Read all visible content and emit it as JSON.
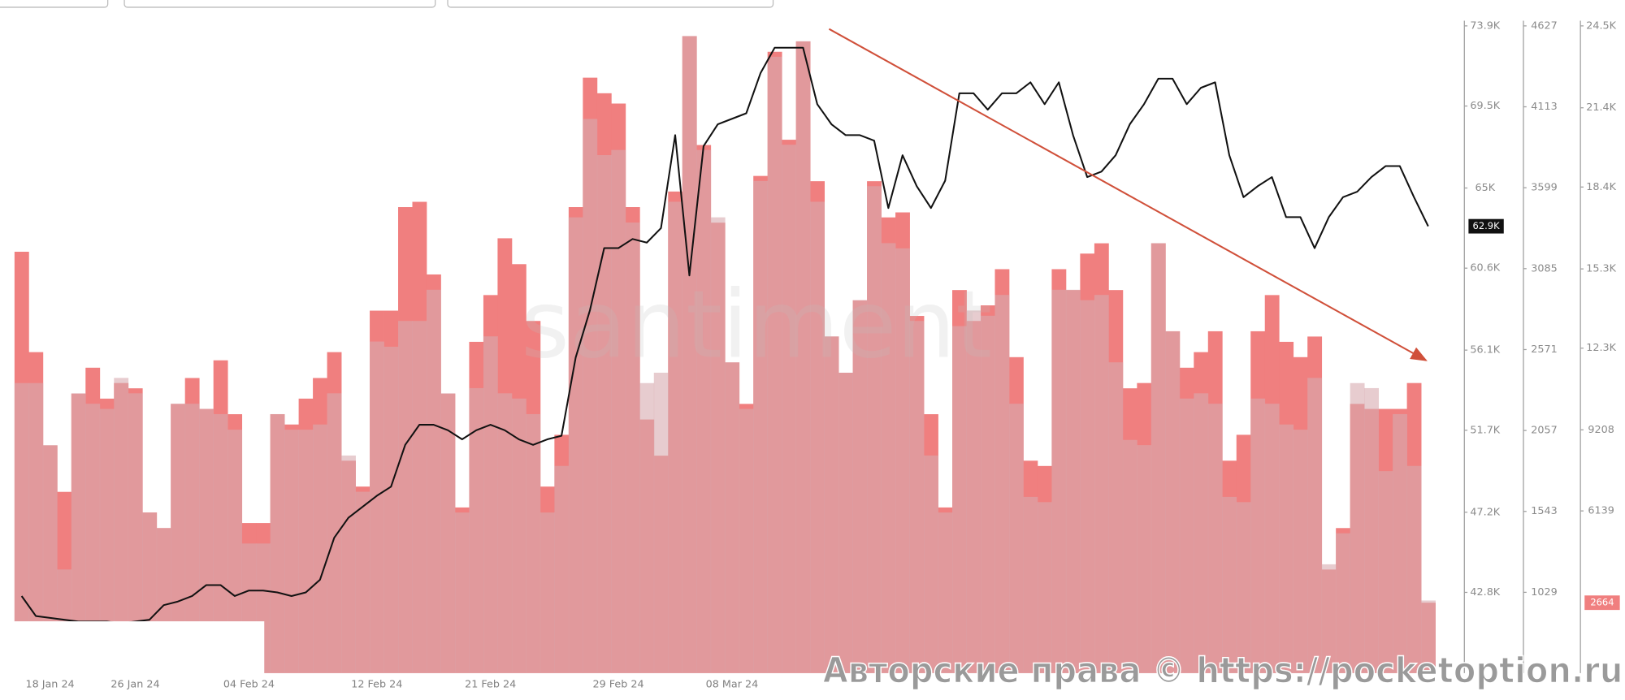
{
  "chart_data": {
    "type": "combo",
    "watermark": "santiment",
    "copyright": "Авторские права © https://pocketoption.ru",
    "categories": [
      null,
      null,
      "18 Jan 24",
      null,
      null,
      null,
      null,
      null,
      "26 Jan 24",
      null,
      null,
      null,
      null,
      null,
      null,
      null,
      "04 Feb 24",
      null,
      null,
      null,
      null,
      null,
      null,
      null,
      null,
      "12 Feb 24",
      null,
      null,
      null,
      null,
      null,
      null,
      null,
      "21 Feb 24",
      null,
      null,
      null,
      null,
      null,
      null,
      null,
      null,
      "29 Feb 24",
      null,
      null,
      null,
      null,
      null,
      null,
      null,
      "08 Mar 24",
      null,
      null,
      null,
      null,
      null,
      null,
      null,
      null,
      null,
      null,
      null,
      null,
      null,
      null,
      null,
      null,
      null,
      null,
      null,
      null,
      null,
      null,
      null,
      null,
      null,
      null,
      null,
      null,
      null,
      null,
      null,
      null,
      null,
      null,
      null,
      null,
      null,
      null,
      null,
      null,
      null,
      null,
      null,
      null,
      null,
      null,
      null,
      null,
      null
    ],
    "ylim": [
      38370,
      73900
    ],
    "yticks": [
      {
        "value": 42800,
        "label": "42.8K"
      },
      {
        "value": 47200,
        "label": "47.2K"
      },
      {
        "value": 51700,
        "label": "51.7K"
      },
      {
        "value": 56100,
        "label": "56.1K"
      },
      {
        "value": 60600,
        "label": "60.6K"
      },
      {
        "value": 65000,
        "label": "65K"
      },
      {
        "value": 69500,
        "label": "69.5K"
      },
      {
        "value": 73900,
        "label": "73.9K"
      }
    ],
    "y2lim": [
      516,
      4627
    ],
    "y2ticks": [
      1029,
      1543,
      2057,
      2571,
      3085,
      3599,
      4113,
      4627
    ],
    "y3lim": [
      0,
      24500
    ],
    "y3ticks": [
      6139,
      9208,
      {
        "value": 12300,
        "label": "12.3K"
      },
      {
        "value": 15300,
        "label": "15.3K"
      },
      {
        "value": 18400,
        "label": "18.4K"
      },
      {
        "value": 21400,
        "label": "21.4K"
      },
      {
        "value": 24500,
        "label": "24.5K"
      }
    ],
    "series": [
      {
        "type": "step",
        "axis": "y3",
        "color": "#f07f7f",
        "last_value_label": "2664",
        "values": [
          15950,
          12150,
          8620,
          6860,
          10580,
          11560,
          10390,
          10980,
          10780,
          6080,
          5490,
          10190,
          11170,
          10000,
          11840,
          9800,
          5680,
          5680,
          9800,
          9410,
          10390,
          11170,
          12150,
          8040,
          7060,
          13720,
          13720,
          17640,
          17840,
          15090,
          10580,
          6270,
          12540,
          14310,
          16460,
          15480,
          13330,
          7060,
          9020,
          17640,
          22540,
          21950,
          21560,
          17640,
          9600,
          8230,
          18230,
          24110,
          19990,
          17050,
          11760,
          10190,
          18820,
          23520,
          20190,
          23910,
          18620,
          12740,
          11370,
          14110,
          18620,
          17250,
          17440,
          13520,
          9800,
          6270,
          14500,
          13330,
          13920,
          15290,
          11960,
          8040,
          7840,
          15290,
          14500,
          15880,
          16270,
          14500,
          10780,
          10980,
          16270,
          12940,
          11560,
          12150,
          12940,
          8040,
          9020,
          12940,
          14310,
          12540,
          11960,
          12740,
          3920,
          5490,
          10190,
          10000,
          10000,
          10000,
          10980,
          2664
        ]
      },
      {
        "type": "step",
        "axis": "y2",
        "color": "#d7aaaf",
        "values": [
          2358,
          2358,
          1964,
          1174,
          2293,
          2227,
          2194,
          2391,
          2293,
          1536,
          1437,
          2227,
          2227,
          2194,
          2161,
          2062,
          1339,
          1339,
          2161,
          2062,
          2062,
          2095,
          2293,
          1898,
          1668,
          2622,
          2589,
          2753,
          2753,
          2951,
          2293,
          1536,
          2326,
          2655,
          2293,
          2260,
          2161,
          1536,
          1832,
          3411,
          4036,
          3806,
          3839,
          3378,
          2358,
          2424,
          3510,
          4563,
          3839,
          3411,
          2490,
          2194,
          3642,
          4431,
          3872,
          4530,
          3510,
          2655,
          2424,
          2885,
          3609,
          3247,
          3214,
          2753,
          1898,
          1536,
          2720,
          2819,
          2786,
          2918,
          2227,
          1635,
          1602,
          2951,
          2951,
          2885,
          2918,
          2490,
          1997,
          1964,
          3247,
          2687,
          2260,
          2293,
          2227,
          1635,
          1602,
          2260,
          2227,
          2095,
          2062,
          2391,
          1207,
          1404,
          2358,
          2326,
          1799,
          2161,
          1832,
          977
        ]
      },
      {
        "type": "line",
        "axis": "y",
        "color": "#111111",
        "last_value_label": "62.9K",
        "values": [
          42600,
          41500,
          41400,
          41300,
          41200,
          41200,
          41200,
          41100,
          41200,
          41300,
          42100,
          42300,
          42600,
          43200,
          43200,
          42600,
          42900,
          42900,
          42800,
          42600,
          42800,
          43500,
          45800,
          46900,
          47500,
          48100,
          48600,
          50900,
          52000,
          52000,
          51700,
          51200,
          51700,
          52000,
          51700,
          51200,
          50900,
          51200,
          51400,
          55700,
          58300,
          61700,
          61700,
          62200,
          62000,
          62800,
          67900,
          60200,
          67300,
          68500,
          68800,
          69100,
          71300,
          72700,
          72700,
          72700,
          69600,
          68500,
          67900,
          67900,
          67600,
          63900,
          66800,
          65100,
          63900,
          65400,
          70200,
          70200,
          69300,
          70200,
          70200,
          70800,
          69600,
          70800,
          67900,
          65600,
          65900,
          66800,
          68500,
          69600,
          71000,
          71000,
          69600,
          70500,
          70800,
          66800,
          64500,
          65100,
          65600,
          63400,
          63400,
          61700,
          63400,
          64500,
          64800,
          65600,
          66200,
          66200,
          64500,
          62900
        ]
      }
    ]
  }
}
